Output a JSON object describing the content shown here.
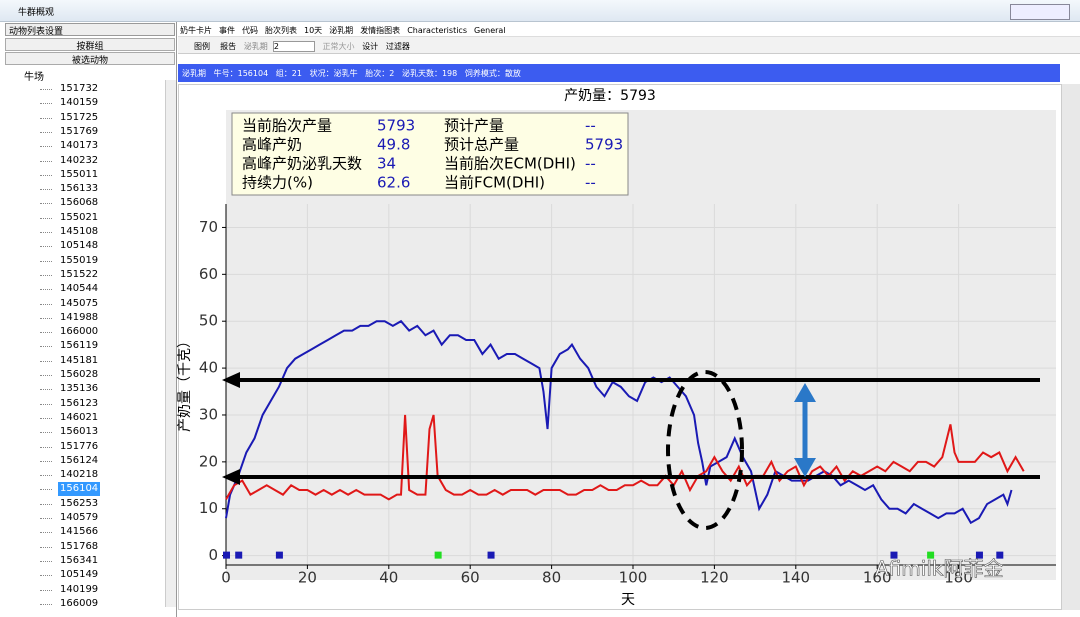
{
  "window": {
    "title": "牛群概观"
  },
  "sidebar": {
    "dropdown": "动物列表设置",
    "buttons": [
      "按群组",
      "被选动物"
    ],
    "root": "牛场",
    "items": [
      "151732",
      "140159",
      "151725",
      "151769",
      "140173",
      "140232",
      "155011",
      "156133",
      "156068",
      "155021",
      "145108",
      "105148",
      "155019",
      "151522",
      "140544",
      "145075",
      "141988",
      "166000",
      "156119",
      "145181",
      "156028",
      "135136",
      "156123",
      "146021",
      "156013",
      "151776",
      "156124",
      "140218",
      "156104",
      "156253",
      "140579",
      "141566",
      "151768",
      "156341",
      "105149",
      "140199",
      "166009"
    ]
  },
  "menu": [
    "奶牛卡片",
    "事件",
    "代码",
    "胎次列表",
    "10天",
    "泌乳期",
    "发情指图表",
    "Characteristics",
    "General"
  ],
  "toolbar": {
    "legend": "图例",
    "report": "报告",
    "lactation": "泌乳期",
    "lactation_value": "2",
    "normal_size": "正常大小",
    "design": "设计",
    "filter": "过滤器"
  },
  "status": "泌乳期   牛号：156104   组：21   状况：泌乳牛   胎次：2   泌乳天数：198   饲养模式：散放",
  "watermark": "Afimilk阿菲金",
  "chart_data": {
    "type": "line",
    "title": "产奶量：5793",
    "x_label": "天",
    "y_label": "产奶量（千克）",
    "stats": [
      [
        "当前胎次产量",
        "5793",
        "预计产量",
        "--"
      ],
      [
        "高峰产奶",
        "49.8",
        "预计总产量",
        "5793"
      ],
      [
        "高峰产奶泌乳天数",
        "34",
        "当前胎次ECM(DHI)",
        "--"
      ],
      [
        "持续力(%)",
        "62.6",
        "当前FCM(DHI)",
        "--"
      ]
    ],
    "xlim": [
      0,
      200
    ],
    "xticks": [
      0,
      20,
      40,
      60,
      80,
      100,
      120,
      140,
      160,
      180
    ],
    "ylim": [
      -2,
      75
    ],
    "yticks": [
      0,
      10,
      20,
      30,
      40,
      50,
      60,
      70
    ],
    "grid": true,
    "series": [
      {
        "color": "#1a1ab4",
        "x": [
          0,
          1,
          2,
          3,
          5,
          7,
          9,
          11,
          13,
          15,
          17,
          19,
          21,
          23,
          25,
          27,
          29,
          31,
          33,
          35,
          37,
          39,
          41,
          43,
          45,
          47,
          49,
          51,
          53,
          55,
          57,
          59,
          61,
          63,
          65,
          67,
          69,
          71,
          73,
          75,
          77,
          78,
          79,
          80,
          82,
          84,
          85,
          87,
          89,
          91,
          93,
          95,
          97,
          99,
          101,
          103,
          105,
          107,
          109,
          111,
          113,
          115,
          116,
          117,
          118,
          119,
          121,
          123,
          125,
          127,
          129,
          131,
          133,
          135,
          137,
          139,
          141,
          143,
          145,
          147,
          149,
          151,
          153,
          155,
          157,
          159,
          161,
          163,
          165,
          167,
          169,
          171,
          173,
          175,
          177,
          179,
          181,
          183,
          185,
          187,
          189,
          191,
          192,
          193
        ],
        "values": [
          8,
          13,
          15,
          17,
          22,
          25,
          30,
          33,
          36,
          40,
          42,
          43,
          44,
          45,
          46,
          47,
          48,
          48,
          49,
          49,
          50,
          50,
          49,
          50,
          48,
          49,
          47,
          48,
          45,
          47,
          47,
          46,
          46,
          43,
          45,
          42,
          43,
          43,
          42,
          41,
          40,
          35,
          27,
          40,
          43,
          44,
          45,
          42,
          40,
          36,
          34,
          37,
          36,
          34,
          33,
          37,
          38,
          37,
          38,
          36,
          34,
          30,
          24,
          20,
          15,
          19,
          20,
          21,
          25,
          21,
          18,
          10,
          13,
          18,
          17,
          16,
          16,
          16,
          17,
          18,
          17,
          15,
          16,
          15,
          14,
          15,
          12,
          10,
          10,
          9,
          11,
          10,
          9,
          8,
          9,
          9,
          10,
          7,
          8,
          11,
          12,
          13,
          11,
          14
        ]
      },
      {
        "color": "#e01818",
        "x": [
          0,
          2,
          4,
          6,
          8,
          10,
          12,
          14,
          16,
          18,
          20,
          22,
          24,
          26,
          28,
          30,
          32,
          34,
          36,
          38,
          40,
          42,
          43,
          44,
          45,
          47,
          49,
          50,
          51,
          52,
          54,
          56,
          58,
          60,
          62,
          64,
          66,
          68,
          70,
          72,
          74,
          76,
          78,
          80,
          82,
          84,
          86,
          88,
          90,
          92,
          94,
          96,
          98,
          100,
          102,
          104,
          106,
          108,
          110,
          112,
          114,
          116,
          118,
          120,
          122,
          124,
          126,
          128,
          130,
          132,
          134,
          136,
          138,
          140,
          142,
          144,
          146,
          148,
          150,
          152,
          154,
          156,
          158,
          160,
          162,
          164,
          166,
          168,
          170,
          172,
          174,
          176,
          178,
          179,
          180,
          182,
          184,
          186,
          188,
          190,
          192,
          194,
          196
        ],
        "values": [
          12,
          15,
          16,
          13,
          14,
          15,
          14,
          13,
          15,
          14,
          14,
          13,
          14,
          13,
          14,
          13,
          14,
          13,
          13,
          13,
          12,
          13,
          13,
          30,
          14,
          13,
          13,
          27,
          30,
          17,
          14,
          13,
          13,
          14,
          13,
          13,
          14,
          13,
          14,
          14,
          14,
          13,
          14,
          14,
          14,
          13,
          13,
          14,
          14,
          15,
          14,
          14,
          15,
          15,
          16,
          15,
          15,
          17,
          15,
          18,
          14,
          17,
          18,
          21,
          18,
          16,
          19,
          15,
          17,
          17,
          20,
          16,
          18,
          19,
          15,
          18,
          19,
          17,
          19,
          16,
          18,
          17,
          18,
          19,
          18,
          20,
          19,
          18,
          20,
          20,
          19,
          21,
          28,
          22,
          20,
          20,
          20,
          22,
          21,
          22,
          18,
          21,
          18
        ]
      }
    ],
    "events": [
      {
        "x": 0,
        "color": "#1a1ab4"
      },
      {
        "x": 3,
        "color": "#1a1ab4"
      },
      {
        "x": 13,
        "color": "#1a1ab4"
      },
      {
        "x": 52,
        "color": "#22dd22"
      },
      {
        "x": 65,
        "color": "#1a1ab4"
      },
      {
        "x": 164,
        "color": "#1a1ab4"
      },
      {
        "x": 173,
        "color": "#22dd22"
      },
      {
        "x": 185,
        "color": "#1a1ab4"
      },
      {
        "x": 190,
        "color": "#1a1ab4"
      }
    ]
  }
}
